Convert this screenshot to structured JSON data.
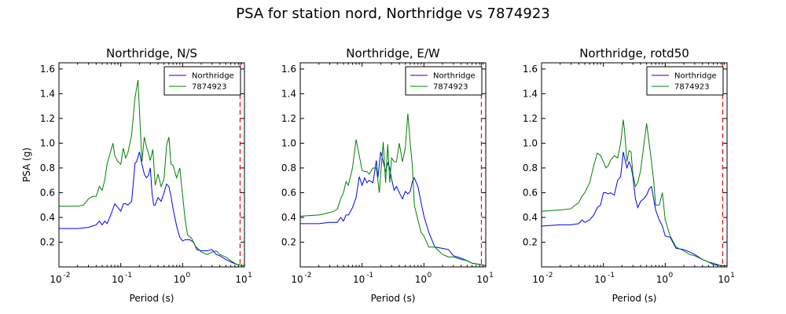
{
  "figure": {
    "title": "PSA for station nord, Northridge vs 7874923"
  },
  "chart_data": [
    {
      "type": "line",
      "title": "Northridge, N/S",
      "xlabel": "Period (s)",
      "ylabel": "PSA (g)",
      "xscale": "log",
      "xlim": [
        0.01,
        10
      ],
      "ylim": [
        0,
        1.65
      ],
      "yticks": [
        "0.2",
        "0.4",
        "0.6",
        "0.8",
        "1.0",
        "1.2",
        "1.4",
        "1.6"
      ],
      "xticks": [
        {
          "base": "10",
          "exp": "-2"
        },
        {
          "base": "10",
          "exp": "-1"
        },
        {
          "base": "10",
          "exp": "0"
        },
        {
          "base": "10",
          "exp": "1"
        }
      ],
      "legend": "top-right",
      "vline": {
        "x": 8.5,
        "color": "#ff0000",
        "style": "dashed"
      },
      "series": [
        {
          "name": "Northridge",
          "color": "#0000ff",
          "x": [
            0.01,
            0.02,
            0.03,
            0.04,
            0.045,
            0.05,
            0.055,
            0.06,
            0.065,
            0.07,
            0.08,
            0.09,
            0.1,
            0.11,
            0.12,
            0.13,
            0.15,
            0.17,
            0.18,
            0.2,
            0.22,
            0.24,
            0.26,
            0.28,
            0.3,
            0.32,
            0.34,
            0.36,
            0.4,
            0.45,
            0.5,
            0.55,
            0.6,
            0.65,
            0.7,
            0.75,
            0.8,
            0.9,
            1.0,
            1.1,
            1.2,
            1.3,
            1.5,
            1.7,
            2.0,
            2.5,
            3.0,
            3.5,
            4.0,
            5.0,
            6.0,
            7.5,
            10.0
          ],
          "y": [
            0.31,
            0.31,
            0.32,
            0.34,
            0.37,
            0.34,
            0.37,
            0.35,
            0.39,
            0.43,
            0.51,
            0.48,
            0.45,
            0.51,
            0.51,
            0.5,
            0.53,
            0.84,
            0.85,
            0.93,
            0.83,
            0.75,
            0.72,
            0.74,
            0.8,
            0.6,
            0.5,
            0.5,
            0.56,
            0.53,
            0.6,
            0.67,
            0.65,
            0.57,
            0.47,
            0.4,
            0.33,
            0.24,
            0.21,
            0.22,
            0.22,
            0.22,
            0.2,
            0.14,
            0.13,
            0.13,
            0.14,
            0.1,
            0.09,
            0.06,
            0.04,
            0.02,
            0.01
          ]
        },
        {
          "name": "7874923",
          "color": "#008000",
          "x": [
            0.01,
            0.02,
            0.025,
            0.03,
            0.035,
            0.04,
            0.045,
            0.05,
            0.055,
            0.06,
            0.07,
            0.075,
            0.08,
            0.09,
            0.1,
            0.11,
            0.12,
            0.13,
            0.15,
            0.17,
            0.19,
            0.2,
            0.22,
            0.24,
            0.26,
            0.28,
            0.3,
            0.33,
            0.36,
            0.4,
            0.45,
            0.5,
            0.55,
            0.6,
            0.65,
            0.7,
            0.8,
            0.9,
            1.0,
            1.1,
            1.2,
            1.4,
            1.6,
            2.0,
            2.5,
            3.0,
            3.5,
            4.0,
            5.0,
            6.0,
            7.5,
            10.0
          ],
          "y": [
            0.49,
            0.49,
            0.5,
            0.55,
            0.57,
            0.57,
            0.65,
            0.62,
            0.7,
            0.83,
            0.95,
            1.0,
            0.9,
            0.85,
            0.83,
            0.96,
            0.88,
            0.92,
            1.07,
            1.37,
            1.51,
            1.27,
            0.85,
            1.05,
            0.97,
            0.92,
            0.86,
            0.95,
            0.66,
            0.75,
            0.65,
            0.71,
            0.98,
            1.05,
            0.83,
            0.82,
            0.72,
            0.8,
            0.58,
            0.38,
            0.26,
            0.23,
            0.17,
            0.12,
            0.1,
            0.12,
            0.13,
            0.1,
            0.08,
            0.05,
            0.02,
            0.01
          ]
        }
      ]
    },
    {
      "type": "line",
      "title": "Northridge, E/W",
      "xlabel": "Period (s)",
      "ylabel": "",
      "xscale": "log",
      "xlim": [
        0.01,
        10
      ],
      "ylim": [
        0,
        1.65
      ],
      "yticks": [
        "0.2",
        "0.4",
        "0.6",
        "0.8",
        "1.0",
        "1.2",
        "1.4",
        "1.6"
      ],
      "xticks": [
        {
          "base": "10",
          "exp": "-2"
        },
        {
          "base": "10",
          "exp": "-1"
        },
        {
          "base": "10",
          "exp": "0"
        },
        {
          "base": "10",
          "exp": "1"
        }
      ],
      "legend": "top-right",
      "vline": {
        "x": 8.5,
        "color": "#ff0000",
        "style": "dashed"
      },
      "series": [
        {
          "name": "Northridge",
          "color": "#0000ff",
          "x": [
            0.01,
            0.02,
            0.03,
            0.04,
            0.045,
            0.05,
            0.055,
            0.06,
            0.065,
            0.07,
            0.08,
            0.09,
            0.1,
            0.11,
            0.12,
            0.13,
            0.15,
            0.17,
            0.18,
            0.2,
            0.22,
            0.24,
            0.26,
            0.28,
            0.3,
            0.33,
            0.36,
            0.4,
            0.45,
            0.5,
            0.55,
            0.6,
            0.65,
            0.7,
            0.8,
            0.9,
            1.0,
            1.2,
            1.5,
            2.0,
            2.5,
            3.0,
            3.5,
            4.0,
            5.0,
            6.0,
            8.0,
            10.0
          ],
          "y": [
            0.35,
            0.35,
            0.36,
            0.36,
            0.4,
            0.37,
            0.42,
            0.42,
            0.45,
            0.48,
            0.56,
            0.73,
            0.66,
            0.72,
            0.68,
            0.7,
            0.68,
            0.86,
            0.72,
            0.93,
            0.85,
            0.77,
            0.84,
            0.8,
            0.71,
            0.62,
            0.65,
            0.6,
            0.55,
            0.61,
            0.59,
            0.61,
            0.69,
            0.72,
            0.65,
            0.52,
            0.41,
            0.28,
            0.16,
            0.15,
            0.14,
            0.09,
            0.08,
            0.07,
            0.05,
            0.03,
            0.02,
            0.01
          ]
        },
        {
          "name": "7874923",
          "color": "#008000",
          "x": [
            0.01,
            0.02,
            0.025,
            0.03,
            0.035,
            0.04,
            0.045,
            0.05,
            0.055,
            0.06,
            0.07,
            0.08,
            0.09,
            0.1,
            0.11,
            0.12,
            0.13,
            0.15,
            0.17,
            0.19,
            0.2,
            0.22,
            0.24,
            0.26,
            0.28,
            0.3,
            0.33,
            0.36,
            0.4,
            0.45,
            0.5,
            0.55,
            0.6,
            0.65,
            0.7,
            0.8,
            0.9,
            1.0,
            1.2,
            1.5,
            2.0,
            2.5,
            3.0,
            3.5,
            4.0,
            5.0,
            6.0,
            8.0,
            10.0
          ],
          "y": [
            0.41,
            0.42,
            0.43,
            0.44,
            0.45,
            0.47,
            0.55,
            0.6,
            0.69,
            0.66,
            0.8,
            1.03,
            0.9,
            0.78,
            0.77,
            0.77,
            0.75,
            0.8,
            0.8,
            0.6,
            0.75,
            1.01,
            0.68,
            0.99,
            0.68,
            0.88,
            0.85,
            0.85,
            1.0,
            0.85,
            0.96,
            1.24,
            1.0,
            0.82,
            0.5,
            0.38,
            0.28,
            0.25,
            0.16,
            0.16,
            0.1,
            0.08,
            0.08,
            0.07,
            0.06,
            0.05,
            0.03,
            0.02,
            0.01
          ]
        }
      ]
    },
    {
      "type": "line",
      "title": "Northridge, rotd50",
      "xlabel": "Period (s)",
      "ylabel": "",
      "xscale": "log",
      "xlim": [
        0.01,
        10
      ],
      "ylim": [
        0,
        1.65
      ],
      "yticks": [
        "0.2",
        "0.4",
        "0.6",
        "0.8",
        "1.0",
        "1.2",
        "1.4",
        "1.6"
      ],
      "xticks": [
        {
          "base": "10",
          "exp": "-2"
        },
        {
          "base": "10",
          "exp": "-1"
        },
        {
          "base": "10",
          "exp": "0"
        },
        {
          "base": "10",
          "exp": "1"
        }
      ],
      "legend": "top-right",
      "vline": {
        "x": 8.5,
        "color": "#ff0000",
        "style": "dashed"
      },
      "series": [
        {
          "name": "Northridge",
          "color": "#0000ff",
          "x": [
            0.01,
            0.02,
            0.03,
            0.04,
            0.045,
            0.05,
            0.06,
            0.07,
            0.08,
            0.09,
            0.1,
            0.11,
            0.12,
            0.13,
            0.15,
            0.17,
            0.19,
            0.21,
            0.22,
            0.24,
            0.26,
            0.28,
            0.3,
            0.33,
            0.36,
            0.4,
            0.45,
            0.5,
            0.55,
            0.6,
            0.65,
            0.7,
            0.8,
            0.9,
            1.0,
            1.2,
            1.5,
            2.0,
            2.5,
            3.0,
            4.0,
            5.0,
            6.0,
            8.0,
            10.0
          ],
          "y": [
            0.33,
            0.34,
            0.34,
            0.35,
            0.38,
            0.36,
            0.38,
            0.42,
            0.48,
            0.5,
            0.6,
            0.6,
            0.59,
            0.6,
            0.58,
            0.7,
            0.73,
            0.93,
            0.88,
            0.8,
            0.85,
            0.81,
            0.73,
            0.55,
            0.48,
            0.53,
            0.55,
            0.58,
            0.63,
            0.65,
            0.55,
            0.46,
            0.38,
            0.33,
            0.25,
            0.24,
            0.15,
            0.14,
            0.12,
            0.1,
            0.06,
            0.04,
            0.02,
            0.01,
            0.01
          ]
        },
        {
          "name": "7874923",
          "color": "#008000",
          "x": [
            0.01,
            0.02,
            0.03,
            0.035,
            0.04,
            0.045,
            0.05,
            0.06,
            0.07,
            0.08,
            0.09,
            0.1,
            0.11,
            0.12,
            0.13,
            0.15,
            0.17,
            0.19,
            0.21,
            0.22,
            0.24,
            0.26,
            0.28,
            0.3,
            0.33,
            0.36,
            0.4,
            0.45,
            0.5,
            0.55,
            0.6,
            0.65,
            0.7,
            0.8,
            0.9,
            1.0,
            1.2,
            1.5,
            2.0,
            2.5,
            3.0,
            4.0,
            5.0,
            6.0,
            8.0,
            10.0
          ],
          "y": [
            0.45,
            0.46,
            0.47,
            0.5,
            0.52,
            0.57,
            0.6,
            0.68,
            0.82,
            0.92,
            0.9,
            0.85,
            0.8,
            0.82,
            0.86,
            0.9,
            0.88,
            1.0,
            1.19,
            1.1,
            0.85,
            0.94,
            0.93,
            0.75,
            0.65,
            0.68,
            0.78,
            0.98,
            1.16,
            1.0,
            0.85,
            0.7,
            0.5,
            0.5,
            0.6,
            0.38,
            0.25,
            0.16,
            0.13,
            0.1,
            0.09,
            0.06,
            0.04,
            0.03,
            0.01,
            0.01
          ]
        }
      ]
    }
  ]
}
